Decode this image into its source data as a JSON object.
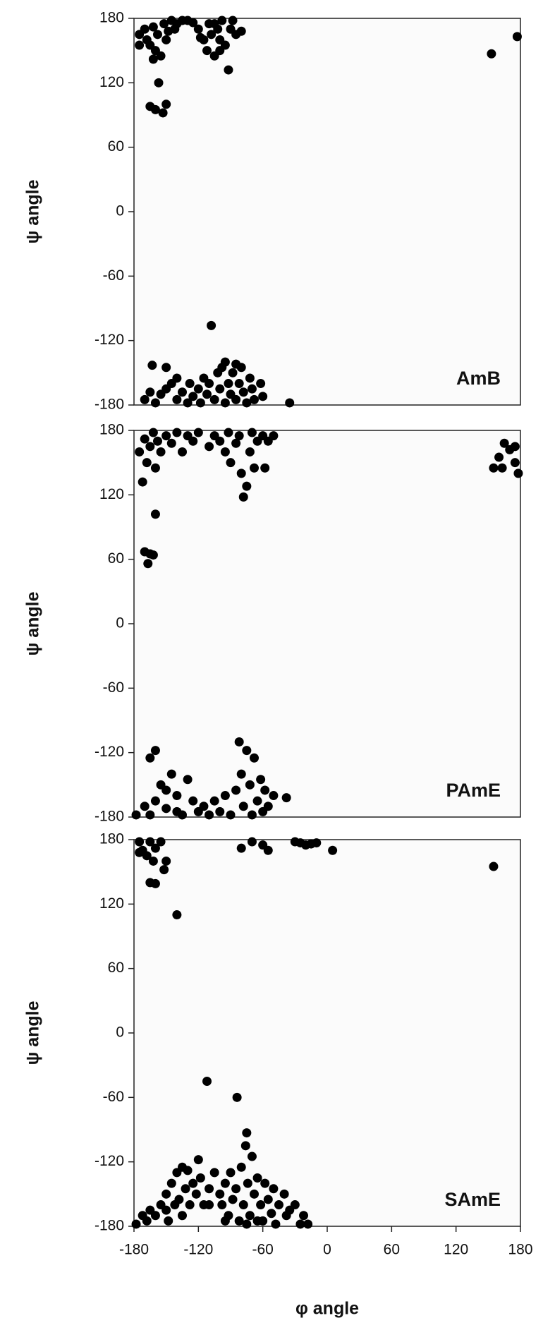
{
  "chart_data": [
    {
      "type": "scatter",
      "label": "AmB",
      "ylabel": "ψ angle",
      "color": "#000000",
      "xlim": [
        -180,
        180
      ],
      "ylim": [
        -180,
        180
      ],
      "yticks": [
        -180,
        -120,
        -60,
        0,
        60,
        120,
        180
      ],
      "x": [
        -175,
        -170,
        -168,
        -165,
        -162,
        -160,
        -158,
        -155,
        -152,
        -150,
        -148,
        -145,
        -142,
        -140,
        -135,
        -130,
        -125,
        -120,
        -115,
        -112,
        -110,
        -108,
        -105,
        -102,
        -100,
        -98,
        -95,
        -92,
        -90,
        -88,
        -85,
        -80,
        -157,
        -165,
        -160,
        -153,
        -150,
        -162,
        -175,
        -100,
        -105,
        -118,
        153,
        177,
        -163,
        -150,
        -108,
        -170,
        -165,
        -160,
        -155,
        -150,
        -145,
        -140,
        -135,
        -130,
        -125,
        -120,
        -118,
        -115,
        -112,
        -110,
        -105,
        -102,
        -100,
        -98,
        -95,
        -92,
        -90,
        -88,
        -85,
        -82,
        -80,
        -78,
        -75,
        -72,
        -70,
        -68,
        -62,
        -60,
        -35,
        -140,
        -128,
        -95,
        -85
      ],
      "y": [
        165,
        170,
        160,
        155,
        172,
        150,
        165,
        145,
        175,
        160,
        168,
        178,
        170,
        175,
        178,
        178,
        176,
        170,
        160,
        150,
        175,
        165,
        145,
        170,
        160,
        178,
        155,
        132,
        170,
        178,
        165,
        168,
        120,
        98,
        95,
        92,
        100,
        142,
        155,
        150,
        175,
        162,
        147,
        163,
        -143,
        -145,
        -106,
        -175,
        -168,
        -178,
        -170,
        -165,
        -160,
        -175,
        -168,
        -178,
        -172,
        -165,
        -178,
        -155,
        -170,
        -160,
        -175,
        -150,
        -165,
        -145,
        -178,
        -160,
        -170,
        -150,
        -175,
        -160,
        -145,
        -168,
        -178,
        -155,
        -165,
        -175,
        -160,
        -172,
        -178,
        -155,
        -160,
        -140,
        -142
      ]
    },
    {
      "type": "scatter",
      "label": "PAmE",
      "ylabel": "ψ angle",
      "color": "#000000",
      "xlim": [
        -180,
        180
      ],
      "ylim": [
        -180,
        180
      ],
      "yticks": [
        -180,
        -120,
        -60,
        0,
        60,
        120,
        180
      ],
      "x": [
        -175,
        -172,
        -170,
        -168,
        -165,
        -162,
        -160,
        -158,
        -155,
        -150,
        -145,
        -140,
        -135,
        -130,
        -125,
        -120,
        -110,
        -105,
        -100,
        -95,
        -92,
        -90,
        -85,
        -82,
        -80,
        -78,
        -75,
        -72,
        -70,
        -68,
        -65,
        -60,
        -58,
        -55,
        -50,
        -160,
        -170,
        -165,
        -167,
        -162,
        155,
        160,
        165,
        170,
        175,
        178,
        175,
        163,
        -165,
        -160,
        -170,
        -165,
        -160,
        -155,
        -150,
        -145,
        -140,
        -135,
        -130,
        -125,
        -120,
        -115,
        -110,
        -105,
        -100,
        -95,
        -90,
        -85,
        -82,
        -80,
        -78,
        -75,
        -72,
        -70,
        -68,
        -65,
        -62,
        -60,
        -58,
        -55,
        -50,
        -38,
        -140,
        -150,
        -178
      ],
      "y": [
        160,
        132,
        172,
        150,
        165,
        178,
        145,
        170,
        160,
        175,
        168,
        178,
        160,
        175,
        170,
        178,
        165,
        175,
        170,
        160,
        178,
        150,
        168,
        175,
        140,
        118,
        128,
        160,
        178,
        145,
        170,
        175,
        145,
        170,
        175,
        102,
        67,
        65,
        56,
        64,
        145,
        155,
        168,
        162,
        150,
        140,
        165,
        145,
        -125,
        -118,
        -170,
        -178,
        -165,
        -150,
        -172,
        -140,
        -160,
        -178,
        -145,
        -165,
        -175,
        -170,
        -178,
        -165,
        -175,
        -160,
        -178,
        -155,
        -110,
        -140,
        -170,
        -118,
        -150,
        -178,
        -125,
        -165,
        -145,
        -175,
        -155,
        -170,
        -160,
        -162,
        -175,
        -155,
        -178
      ]
    },
    {
      "type": "scatter",
      "label": "SAmE",
      "ylabel": "ψ angle",
      "xlabel": "φ angle",
      "color": "#000000",
      "xlim": [
        -180,
        180
      ],
      "ylim": [
        -180,
        180
      ],
      "yticks": [
        -180,
        -120,
        -60,
        0,
        60,
        120,
        180
      ],
      "xticks": [
        -180,
        -120,
        -60,
        0,
        60,
        120,
        180
      ],
      "x": [
        -175,
        -172,
        -168,
        -165,
        -162,
        -160,
        -155,
        -152,
        -150,
        -165,
        -160,
        -140,
        -80,
        -70,
        -60,
        -55,
        -30,
        -25,
        -20,
        -15,
        -10,
        5,
        155,
        -175,
        -112,
        -84,
        -75,
        -178,
        -172,
        -168,
        -165,
        -160,
        -155,
        -150,
        -148,
        -145,
        -142,
        -140,
        -138,
        -135,
        -132,
        -130,
        -128,
        -125,
        -122,
        -120,
        -118,
        -115,
        -110,
        -105,
        -100,
        -98,
        -95,
        -92,
        -90,
        -88,
        -85,
        -82,
        -80,
        -78,
        -76,
        -74,
        -72,
        -70,
        -68,
        -65,
        -62,
        -60,
        -58,
        -55,
        -52,
        -50,
        -48,
        -45,
        -40,
        -38,
        -35,
        -30,
        -25,
        -22,
        -18,
        -150,
        -135,
        -110,
        -95,
        -65,
        -75
      ],
      "y": [
        178,
        170,
        165,
        178,
        160,
        172,
        178,
        152,
        160,
        140,
        139,
        110,
        172,
        178,
        175,
        170,
        178,
        177,
        175,
        176,
        177,
        170,
        155,
        168,
        -45,
        -60,
        -93,
        -178,
        -170,
        -175,
        -165,
        -170,
        -160,
        -150,
        -175,
        -140,
        -160,
        -130,
        -155,
        -170,
        -145,
        -128,
        -160,
        -140,
        -150,
        -118,
        -135,
        -160,
        -145,
        -130,
        -150,
        -160,
        -140,
        -170,
        -130,
        -155,
        -145,
        -175,
        -125,
        -160,
        -105,
        -140,
        -170,
        -115,
        -150,
        -135,
        -160,
        -175,
        -140,
        -155,
        -168,
        -145,
        -178,
        -160,
        -150,
        -170,
        -165,
        -160,
        -178,
        -170,
        -178,
        -165,
        -125,
        -160,
        -175,
        -175,
        -178
      ]
    }
  ]
}
